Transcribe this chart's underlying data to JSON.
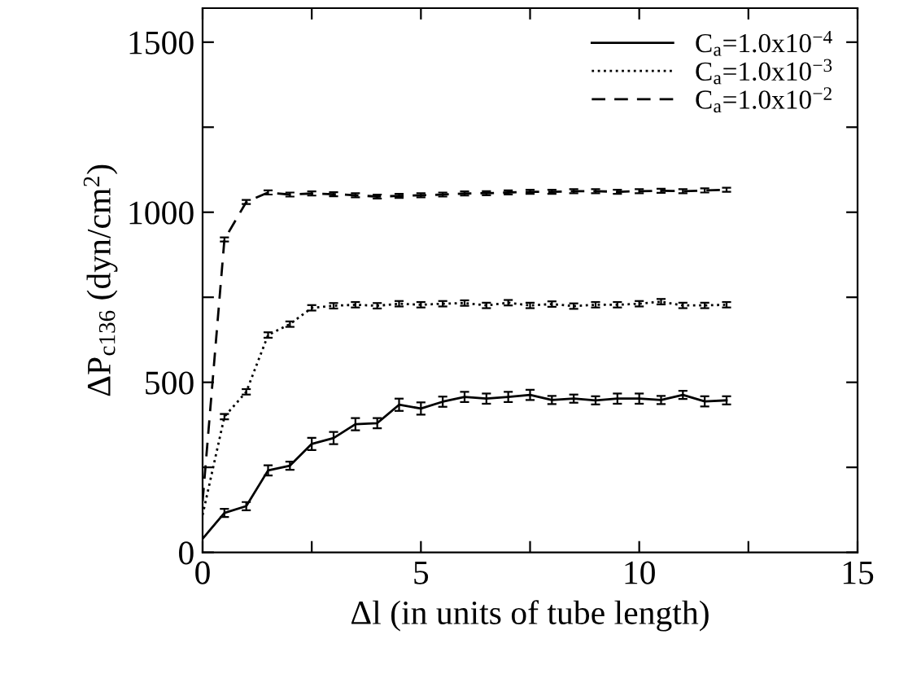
{
  "chart_data": {
    "type": "line",
    "xlabel": "Δl (in units of tube length)",
    "ylabel": "ΔP$_{c136}$ (dyn/cm$^{2}$)",
    "x": [
      0,
      0.5,
      1,
      1.5,
      2,
      2.5,
      3,
      3.5,
      4,
      4.5,
      5,
      5.5,
      6,
      6.5,
      7,
      7.5,
      8,
      8.5,
      9,
      9.5,
      10,
      10.5,
      11,
      11.5,
      12
    ],
    "series": [
      {
        "name": "C$_{a}$=1.0x10$^{−4}$",
        "color": "#000000",
        "line_style": "solid",
        "values": [
          40,
          116,
          136,
          241,
          255,
          319,
          336,
          377,
          380,
          434,
          423,
          443,
          457,
          452,
          457,
          463,
          448,
          452,
          447,
          452,
          452,
          448,
          463,
          444,
          447
        ],
        "errors": [
          null,
          12,
          12,
          15,
          12,
          18,
          18,
          18,
          15,
          18,
          18,
          15,
          15,
          15,
          15,
          15,
          12,
          12,
          12,
          15,
          15,
          12,
          12,
          15,
          12
        ]
      },
      {
        "name": "C$_{a}$=1.0x10$^{−3}$",
        "color": "#000000",
        "line_style": "dotted",
        "values": [
          110,
          399,
          472,
          639,
          671,
          719,
          725,
          728,
          725,
          731,
          728,
          731,
          733,
          726,
          734,
          726,
          730,
          724,
          728,
          728,
          731,
          737,
          726,
          726,
          728
        ],
        "errors": [
          null,
          8,
          8,
          8,
          8,
          8,
          8,
          8,
          8,
          8,
          8,
          8,
          8,
          8,
          8,
          8,
          8,
          8,
          8,
          8,
          8,
          8,
          8,
          8,
          8
        ]
      },
      {
        "name": "C$_{a}$=1.0x10$^{−2}$",
        "color": "#000000",
        "line_style": "dashed",
        "values": [
          150,
          920,
          1030,
          1058,
          1052,
          1055,
          1053,
          1050,
          1046,
          1048,
          1050,
          1052,
          1055,
          1056,
          1058,
          1060,
          1060,
          1062,
          1062,
          1060,
          1062,
          1063,
          1062,
          1064,
          1066
        ],
        "errors": [
          null,
          6,
          6,
          6,
          6,
          6,
          6,
          6,
          6,
          6,
          6,
          6,
          6,
          6,
          6,
          6,
          6,
          6,
          6,
          6,
          6,
          6,
          6,
          6,
          6
        ]
      }
    ],
    "xlim": [
      0,
      15
    ],
    "ylim": [
      0,
      1600
    ],
    "xticks": [
      0,
      {
        "value": 2.5,
        "label": null
      },
      5,
      {
        "value": 7.5,
        "label": null
      },
      10,
      {
        "value": 12.5,
        "label": null
      },
      15
    ],
    "yticks": [
      0,
      {
        "value": 250,
        "label": null
      },
      500,
      {
        "value": 750,
        "label": null
      },
      1000,
      {
        "value": 1250,
        "label": null
      },
      1500
    ],
    "legend": "top right",
    "grid": false,
    "marker": "none"
  }
}
